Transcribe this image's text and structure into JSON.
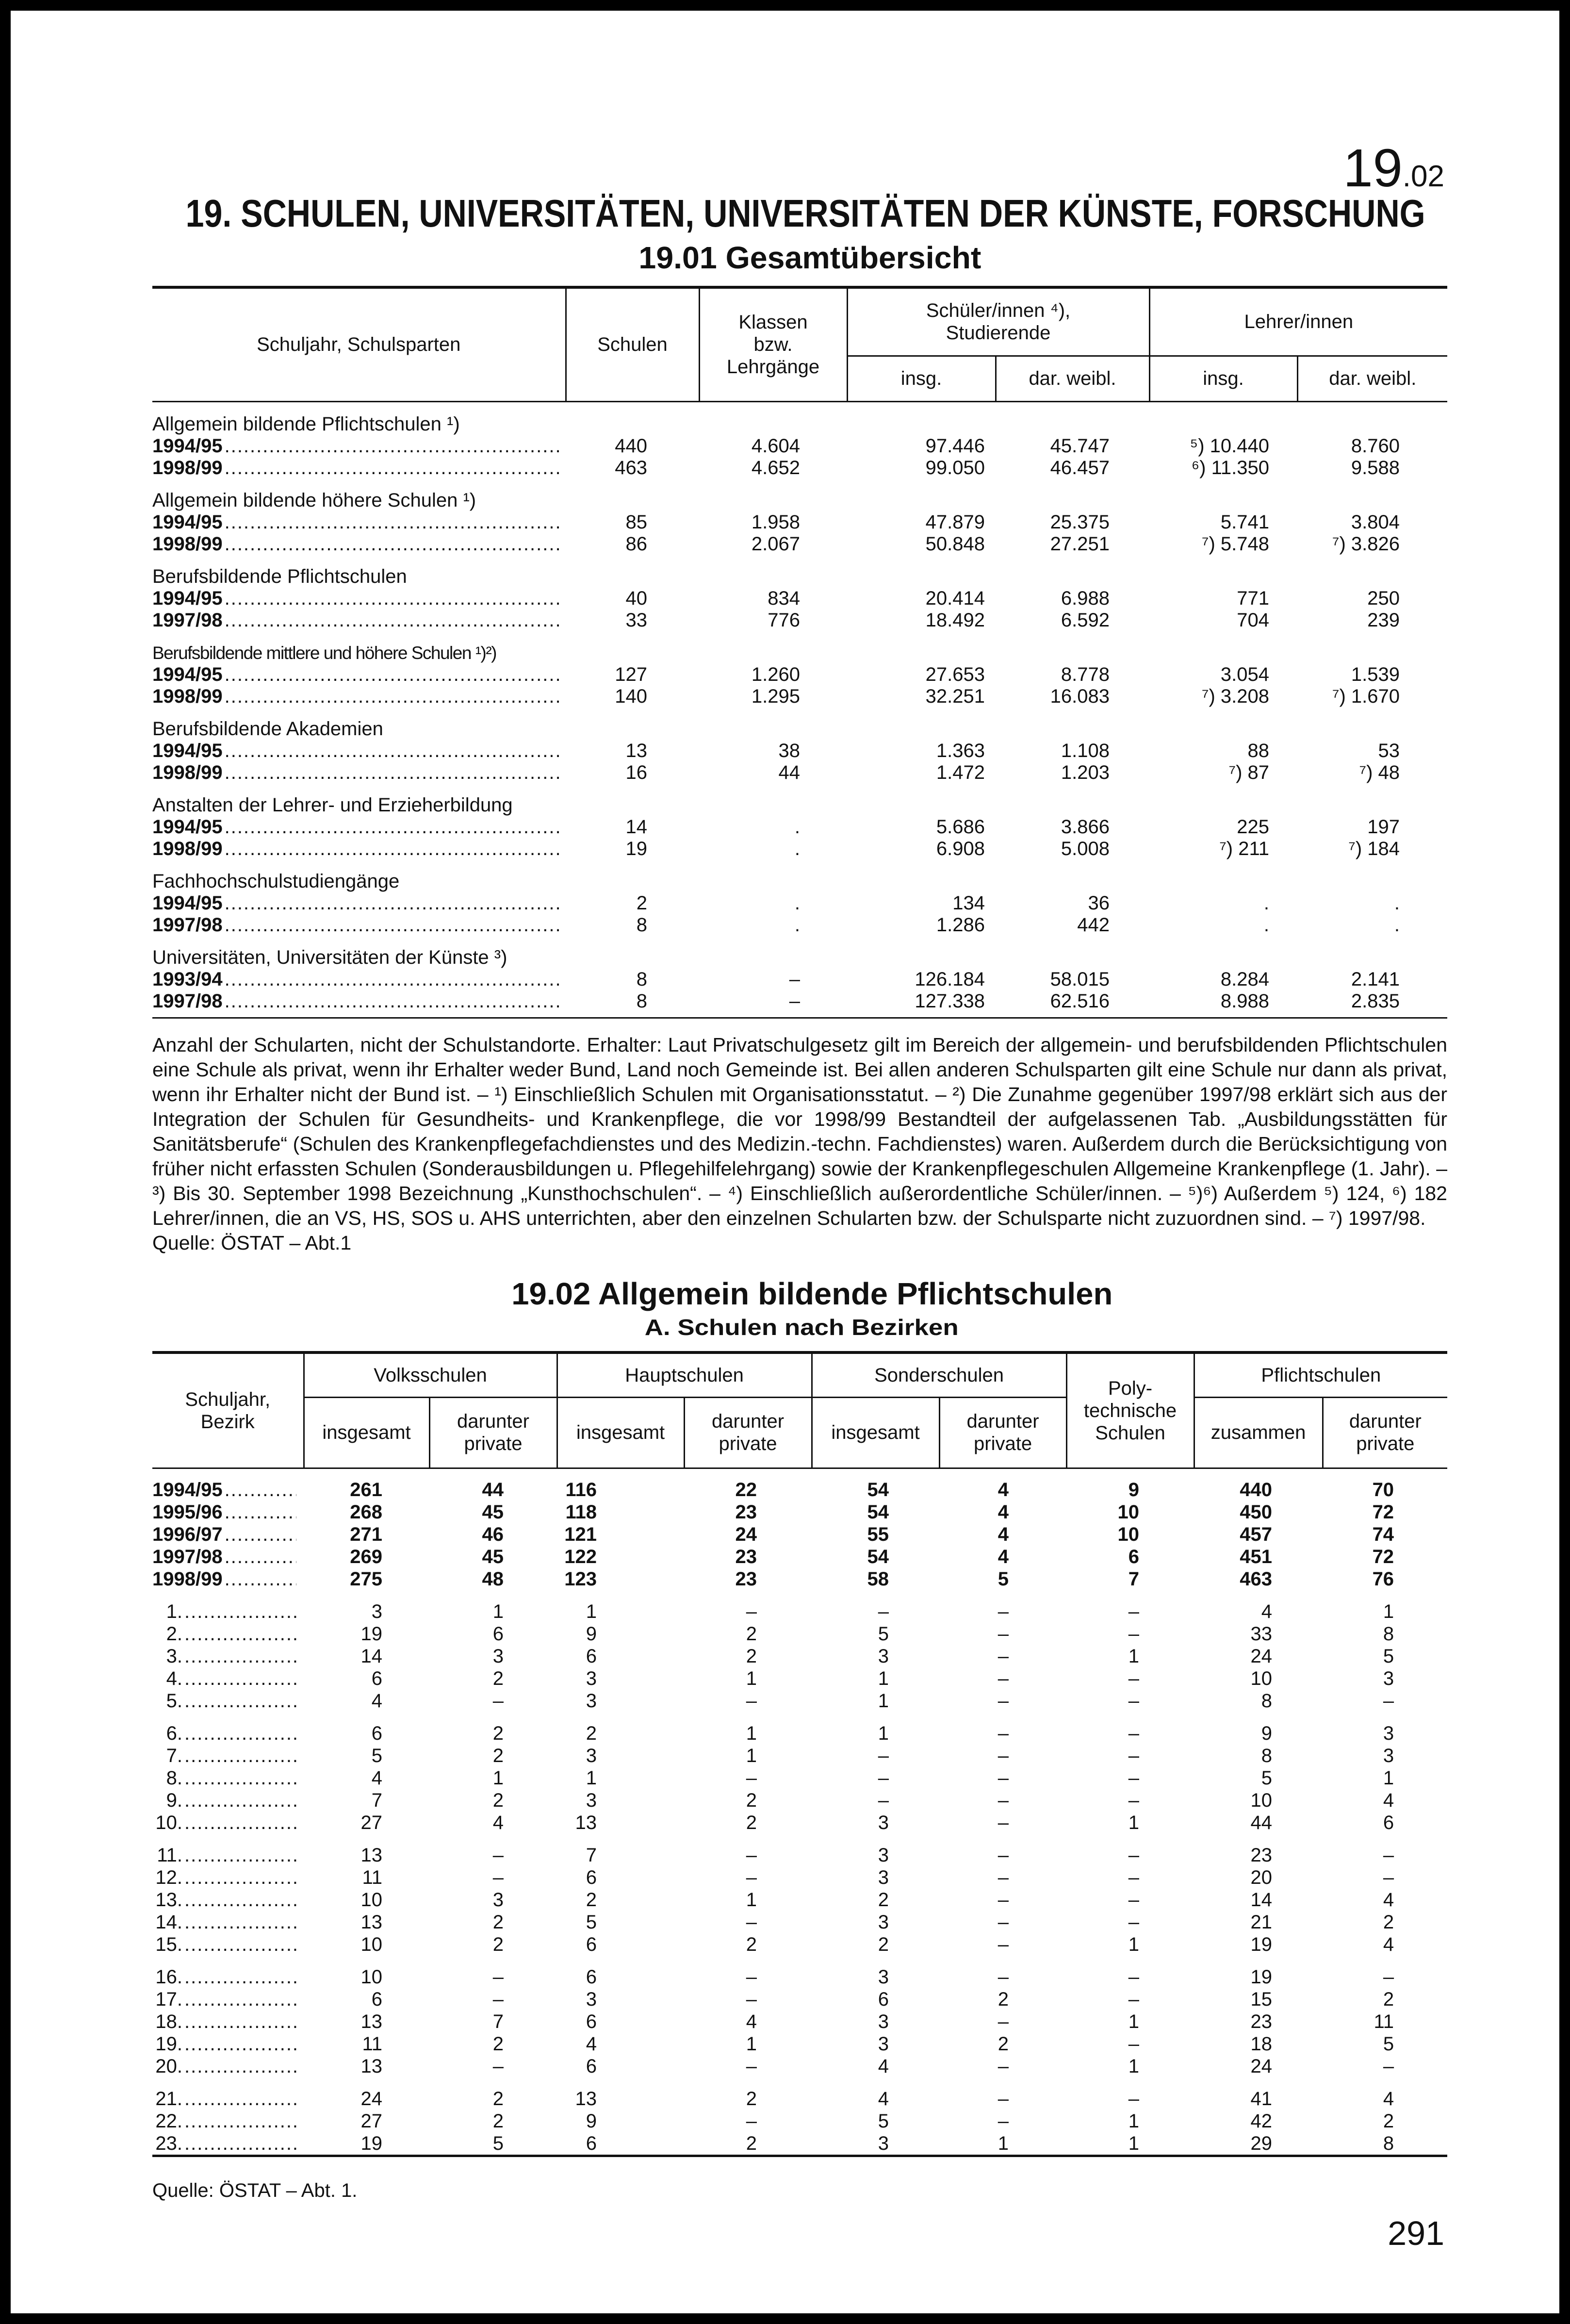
{
  "header": {
    "chapter": "19",
    "chapter_suffix": ".02",
    "title": "19. SCHULEN, UNIVERSITÄTEN, UNIVERSITÄTEN DER KÜNSTE, FORSCHUNG"
  },
  "table1": {
    "title": "19.01 Gesamtübersicht",
    "header": {
      "col0": "Schuljahr, Schulsparten",
      "schulen": "Schulen",
      "klassen": "Klassen\nbzw.\nLehrgänge",
      "schueler": "Schüler/innen ⁴),\nStudierende",
      "lehrer": "Lehrer/innen",
      "subheaders": [
        "insg.",
        "dar. weibl.",
        "insg.",
        "dar. weibl."
      ]
    },
    "groups": [
      {
        "label": "Allgemein bildende Pflichtschulen ¹)",
        "rows": [
          [
            "1994/95",
            "440",
            "4.604",
            "97.446",
            "45.747",
            "⁵) 10.440",
            "8.760"
          ],
          [
            "1998/99",
            "463",
            "4.652",
            "99.050",
            "46.457",
            "⁶) 11.350",
            "9.588"
          ]
        ]
      },
      {
        "label": "Allgemein bildende höhere Schulen ¹)",
        "rows": [
          [
            "1994/95",
            "85",
            "1.958",
            "47.879",
            "25.375",
            "5.741",
            "3.804"
          ],
          [
            "1998/99",
            "86",
            "2.067",
            "50.848",
            "27.251",
            "⁷) 5.748",
            "⁷) 3.826"
          ]
        ]
      },
      {
        "label": "Berufsbildende Pflichtschulen",
        "rows": [
          [
            "1994/95",
            "40",
            "834",
            "20.414",
            "6.988",
            "771",
            "250"
          ],
          [
            "1997/98",
            "33",
            "776",
            "18.492",
            "6.592",
            "704",
            "239"
          ]
        ]
      },
      {
        "label": "Berufsbildende mittlere und höhere Schulen ¹)²)",
        "rows": [
          [
            "1994/95",
            "127",
            "1.260",
            "27.653",
            "8.778",
            "3.054",
            "1.539"
          ],
          [
            "1998/99",
            "140",
            "1.295",
            "32.251",
            "16.083",
            "⁷) 3.208",
            "⁷) 1.670"
          ]
        ]
      },
      {
        "label": "Berufsbildende Akademien",
        "rows": [
          [
            "1994/95",
            "13",
            "38",
            "1.363",
            "1.108",
            "88",
            "53"
          ],
          [
            "1998/99",
            "16",
            "44",
            "1.472",
            "1.203",
            "⁷) 87",
            "⁷) 48"
          ]
        ]
      },
      {
        "label": "Anstalten der Lehrer- und Erzieherbildung",
        "rows": [
          [
            "1994/95",
            "14",
            ".",
            "5.686",
            "3.866",
            "225",
            "197"
          ],
          [
            "1998/99",
            "19",
            ".",
            "6.908",
            "5.008",
            "⁷) 211",
            "⁷) 184"
          ]
        ]
      },
      {
        "label": "Fachhochschulstudiengänge",
        "rows": [
          [
            "1994/95",
            "2",
            ".",
            "134",
            "36",
            ".",
            "."
          ],
          [
            "1997/98",
            "8",
            ".",
            "1.286",
            "442",
            ".",
            "."
          ]
        ]
      },
      {
        "label": "Universitäten, Universitäten der Künste ³)",
        "rows": [
          [
            "1993/94",
            "8",
            "–",
            "126.184",
            "58.015",
            "8.284",
            "2.141"
          ],
          [
            "1997/98",
            "8",
            "–",
            "127.338",
            "62.516",
            "8.988",
            "2.835"
          ]
        ]
      }
    ],
    "notes": "Anzahl der Schularten, nicht der Schulstandorte. Erhalter: Laut Privatschulgesetz gilt im Bereich der allgemein- und berufsbildenden Pflichtschulen eine Schule als privat, wenn ihr Erhalter weder Bund, Land noch Gemeinde ist. Bei allen anderen Schulsparten gilt eine Schule nur dann als privat, wenn ihr Erhalter nicht der Bund ist. – ¹) Einschließlich Schulen mit Organisationsstatut. – ²) Die Zunahme gegenüber 1997/98 erklärt sich aus der Integration der Schulen für Gesundheits- und Krankenpflege, die vor 1998/99 Bestandteil der aufgelassenen Tab. „Ausbildungsstätten für Sanitätsberufe“ (Schulen des Krankenpflegefachdienstes und des Medizin.-techn. Fachdienstes) waren. Außerdem durch die Berücksichtigung von früher nicht erfassten Schulen (Sonderausbildungen u. Pflegehilfelehrgang) sowie der Krankenpflegeschulen Allgemeine Krankenpflege (1. Jahr). – ³) Bis 30. September 1998 Bezeichnung „Kunsthochschulen“. – ⁴) Einschließlich außerordentliche Schüler/innen. – ⁵)⁶) Außerdem ⁵) 124, ⁶) 182 Lehrer/innen, die an VS, HS, SOS u. AHS unterrichten, aber den einzelnen Schularten bzw. der Schulsparte nicht zuzuordnen sind. – ⁷) 1997/98.",
    "source": "Quelle: ÖSTAT – Abt.1"
  },
  "table2": {
    "title": "19.02 Allgemein bildende Pflichtschulen",
    "subtitle": "A. Schulen nach Bezirken",
    "header": {
      "col0": "Schuljahr,\nBezirk",
      "groups": [
        "Volksschulen",
        "Hauptschulen",
        "Sonderschulen"
      ],
      "poly": "Poly-\ntechnische\nSchulen",
      "pflicht": "Pflichtschulen",
      "subheaders": [
        "insgesamt",
        "darunter\nprivate",
        "insgesamt",
        "darunter\nprivate",
        "insgesamt",
        "darunter\nprivate",
        "zusammen",
        "darunter\nprivate"
      ]
    },
    "summary_rows": [
      [
        "1994/95",
        "261",
        "44",
        "116",
        "22",
        "54",
        "4",
        "9",
        "440",
        "70"
      ],
      [
        "1995/96",
        "268",
        "45",
        "118",
        "23",
        "54",
        "4",
        "10",
        "450",
        "72"
      ],
      [
        "1996/97",
        "271",
        "46",
        "121",
        "24",
        "55",
        "4",
        "10",
        "457",
        "74"
      ],
      [
        "1997/98",
        "269",
        "45",
        "122",
        "23",
        "54",
        "4",
        "6",
        "451",
        "72"
      ],
      [
        "1998/99",
        "275",
        "48",
        "123",
        "23",
        "58",
        "5",
        "7",
        "463",
        "76"
      ]
    ],
    "district_groups": [
      [
        [
          "1.",
          "3",
          "1",
          "1",
          "–",
          "–",
          "–",
          "–",
          "4",
          "1"
        ],
        [
          "2.",
          "19",
          "6",
          "9",
          "2",
          "5",
          "–",
          "–",
          "33",
          "8"
        ],
        [
          "3.",
          "14",
          "3",
          "6",
          "2",
          "3",
          "–",
          "1",
          "24",
          "5"
        ],
        [
          "4.",
          "6",
          "2",
          "3",
          "1",
          "1",
          "–",
          "–",
          "10",
          "3"
        ],
        [
          "5.",
          "4",
          "–",
          "3",
          "–",
          "1",
          "–",
          "–",
          "8",
          "–"
        ]
      ],
      [
        [
          "6.",
          "6",
          "2",
          "2",
          "1",
          "1",
          "–",
          "–",
          "9",
          "3"
        ],
        [
          "7.",
          "5",
          "2",
          "3",
          "1",
          "–",
          "–",
          "–",
          "8",
          "3"
        ],
        [
          "8.",
          "4",
          "1",
          "1",
          "–",
          "–",
          "–",
          "–",
          "5",
          "1"
        ],
        [
          "9.",
          "7",
          "2",
          "3",
          "2",
          "–",
          "–",
          "–",
          "10",
          "4"
        ],
        [
          "10.",
          "27",
          "4",
          "13",
          "2",
          "3",
          "–",
          "1",
          "44",
          "6"
        ]
      ],
      [
        [
          "11.",
          "13",
          "–",
          "7",
          "–",
          "3",
          "–",
          "–",
          "23",
          "–"
        ],
        [
          "12.",
          "11",
          "–",
          "6",
          "–",
          "3",
          "–",
          "–",
          "20",
          "–"
        ],
        [
          "13.",
          "10",
          "3",
          "2",
          "1",
          "2",
          "–",
          "–",
          "14",
          "4"
        ],
        [
          "14.",
          "13",
          "2",
          "5",
          "–",
          "3",
          "–",
          "–",
          "21",
          "2"
        ],
        [
          "15.",
          "10",
          "2",
          "6",
          "2",
          "2",
          "–",
          "1",
          "19",
          "4"
        ]
      ],
      [
        [
          "16.",
          "10",
          "–",
          "6",
          "–",
          "3",
          "–",
          "–",
          "19",
          "–"
        ],
        [
          "17.",
          "6",
          "–",
          "3",
          "–",
          "6",
          "2",
          "–",
          "15",
          "2"
        ],
        [
          "18.",
          "13",
          "7",
          "6",
          "4",
          "3",
          "–",
          "1",
          "23",
          "11"
        ],
        [
          "19.",
          "11",
          "2",
          "4",
          "1",
          "3",
          "2",
          "–",
          "18",
          "5"
        ],
        [
          "20.",
          "13",
          "–",
          "6",
          "–",
          "4",
          "–",
          "1",
          "24",
          "–"
        ]
      ],
      [
        [
          "21.",
          "24",
          "2",
          "13",
          "2",
          "4",
          "–",
          "–",
          "41",
          "4"
        ],
        [
          "22.",
          "27",
          "2",
          "9",
          "–",
          "5",
          "–",
          "1",
          "42",
          "2"
        ],
        [
          "23.",
          "19",
          "5",
          "6",
          "2",
          "3",
          "1",
          "1",
          "29",
          "8"
        ]
      ]
    ],
    "source": "Quelle: ÖSTAT – Abt. 1."
  },
  "page_number": "291"
}
